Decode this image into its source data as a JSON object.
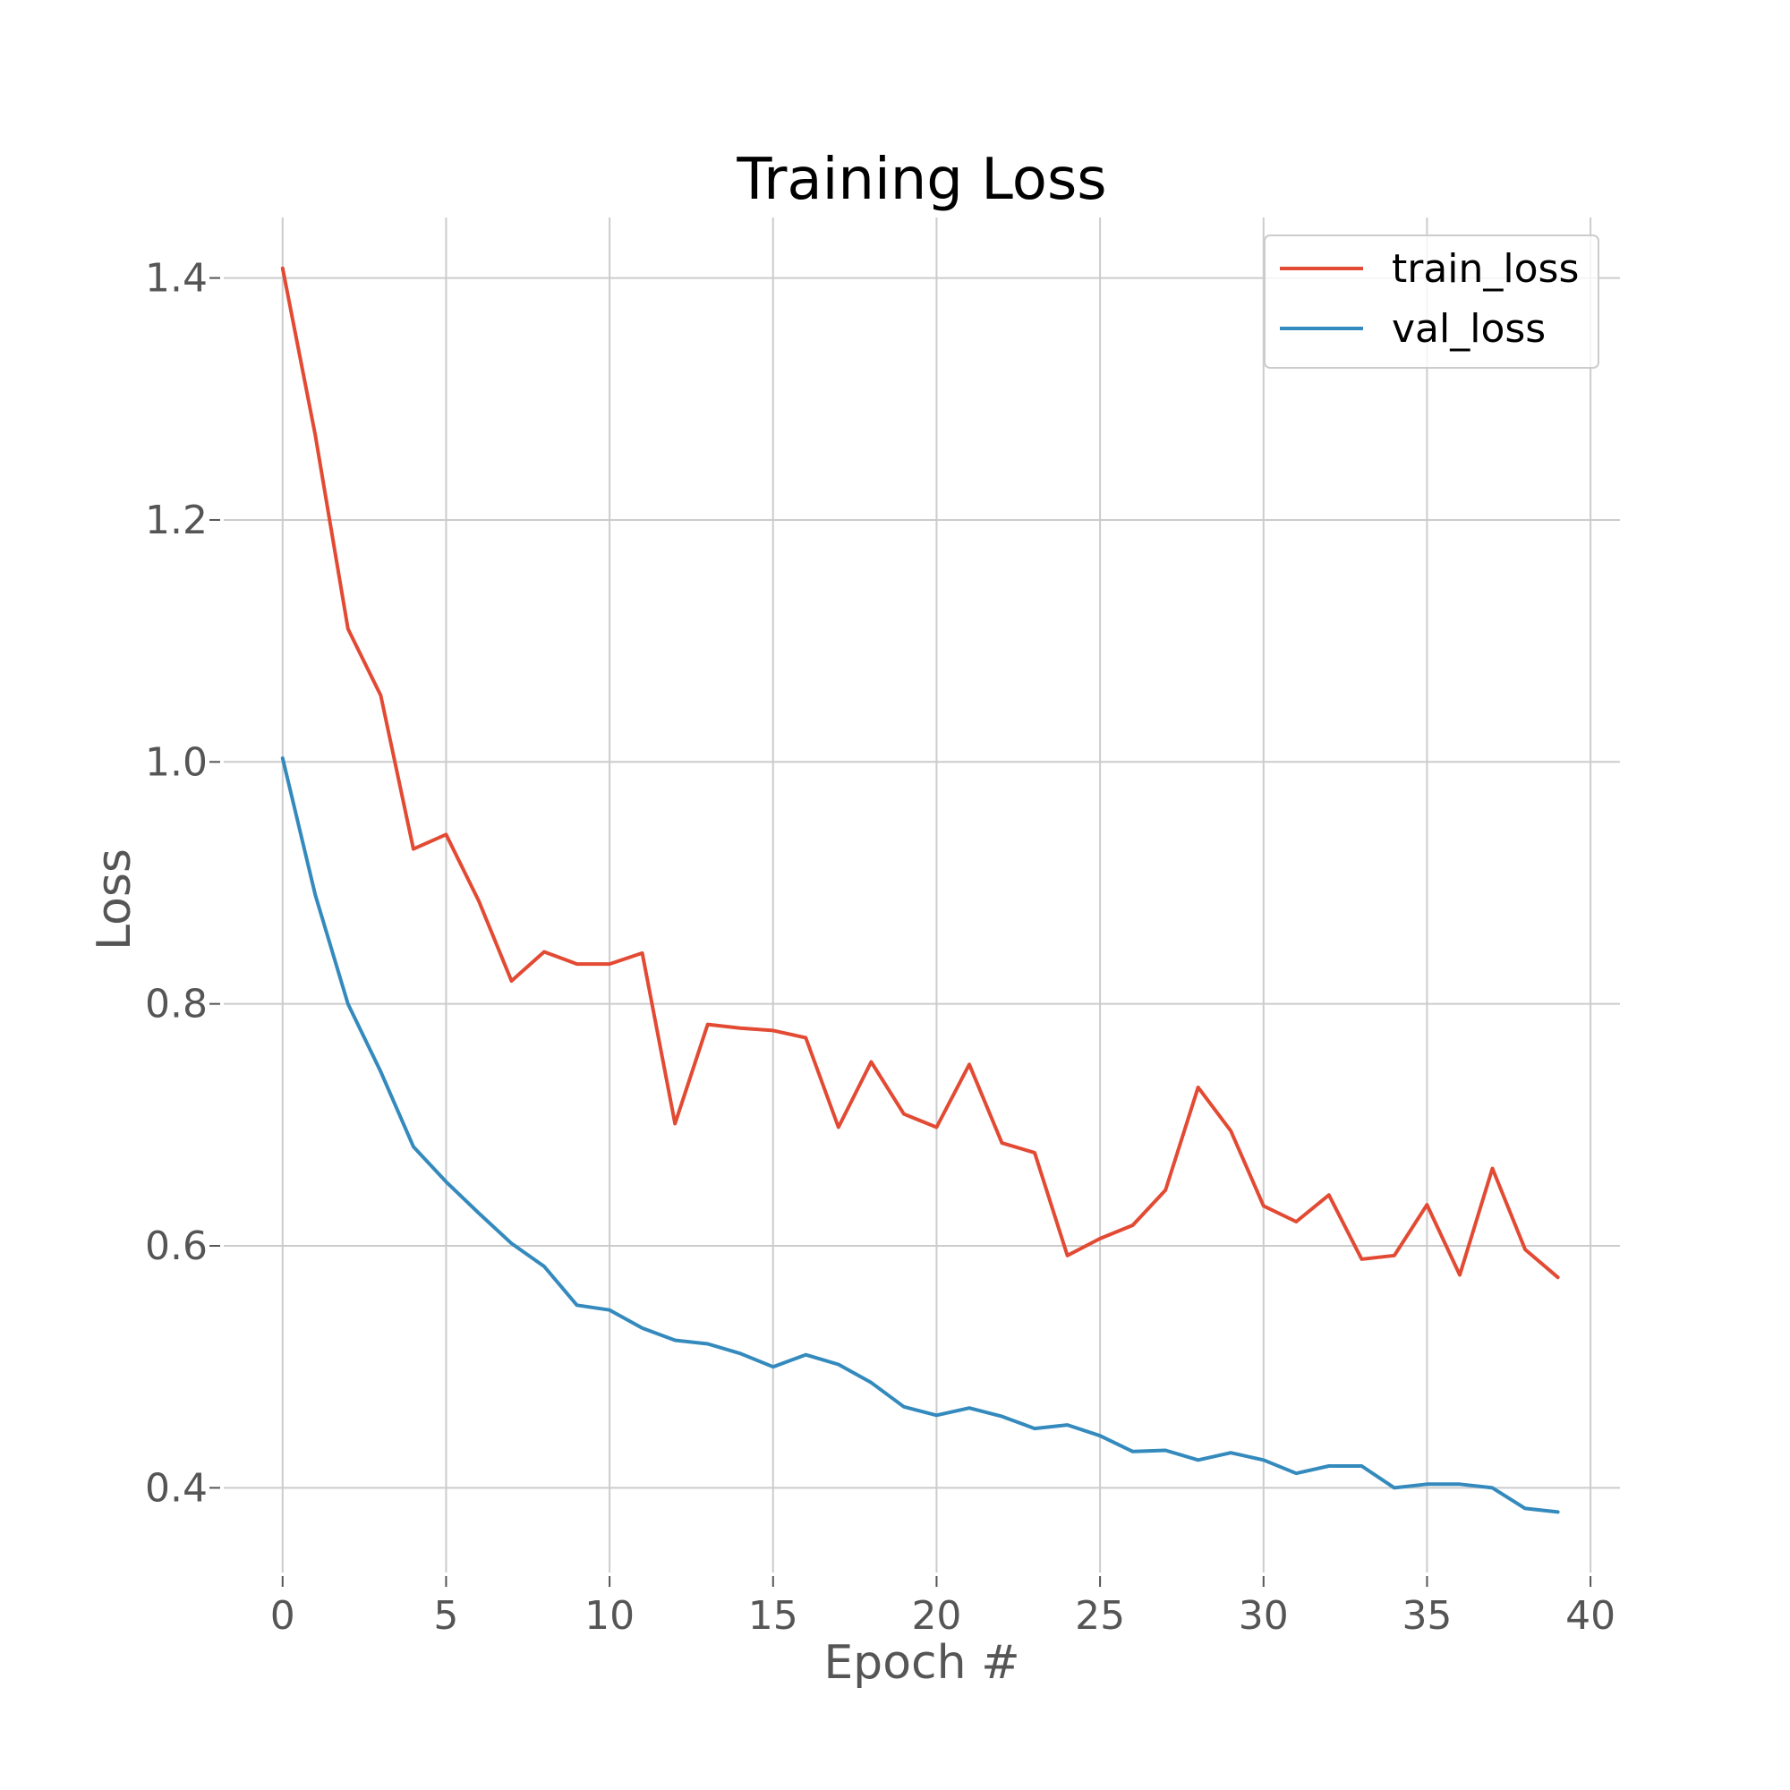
{
  "chart_data": {
    "type": "line",
    "title": "Training Loss",
    "xlabel": "Epoch #",
    "ylabel": "Loss",
    "xlim": [
      -1.8,
      40.9
    ],
    "ylim": [
      0.33,
      1.45
    ],
    "xticks": [
      0,
      5,
      10,
      15,
      20,
      25,
      30,
      35,
      40
    ],
    "yticks": [
      0.4,
      0.6,
      0.8,
      1.0,
      1.2,
      1.4
    ],
    "xtick_labels": [
      "0",
      "5",
      "10",
      "15",
      "20",
      "25",
      "30",
      "35",
      "40"
    ],
    "ytick_labels": [
      "0.4",
      "0.6",
      "0.8",
      "1.0",
      "1.2",
      "1.4"
    ],
    "grid": true,
    "legend_position": "top-right",
    "x": [
      0,
      1,
      2,
      3,
      4,
      5,
      6,
      7,
      8,
      9,
      10,
      11,
      12,
      13,
      14,
      15,
      16,
      17,
      18,
      19,
      20,
      21,
      22,
      23,
      24,
      25,
      26,
      27,
      28,
      29,
      30,
      31,
      32,
      33,
      34,
      35,
      36,
      37,
      38,
      39
    ],
    "series": [
      {
        "name": "train_loss",
        "color": "#E24A33",
        "values": [
          1.408,
          1.27,
          1.11,
          1.055,
          0.928,
          0.94,
          0.885,
          0.819,
          0.843,
          0.833,
          0.833,
          0.842,
          0.701,
          0.783,
          0.78,
          0.778,
          0.772,
          0.698,
          0.752,
          0.709,
          0.698,
          0.75,
          0.685,
          0.677,
          0.592,
          0.606,
          0.617,
          0.646,
          0.731,
          0.695,
          0.633,
          0.62,
          0.642,
          0.589,
          0.592,
          0.634,
          0.576,
          0.664,
          0.597,
          0.574
        ]
      },
      {
        "name": "val_loss",
        "color": "#348ABD",
        "values": [
          1.003,
          0.89,
          0.8,
          0.744,
          0.682,
          0.653,
          0.627,
          0.602,
          0.583,
          0.551,
          0.547,
          0.532,
          0.522,
          0.519,
          0.511,
          0.5,
          0.51,
          0.502,
          0.487,
          0.467,
          0.46,
          0.466,
          0.459,
          0.449,
          0.452,
          0.443,
          0.43,
          0.431,
          0.423,
          0.429,
          0.423,
          0.412,
          0.418,
          0.418,
          0.4,
          0.403,
          0.403,
          0.4,
          0.383,
          0.38
        ]
      }
    ]
  }
}
